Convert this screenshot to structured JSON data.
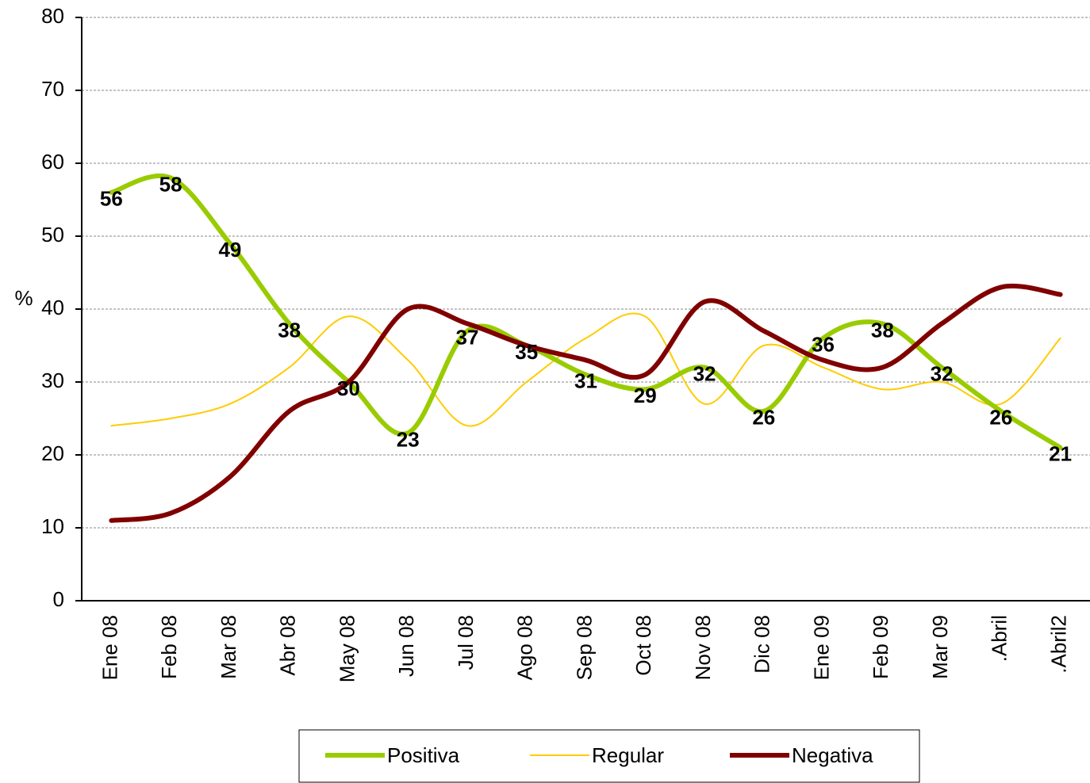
{
  "chart_data": {
    "type": "line",
    "y_label": "%",
    "categories": [
      "Ene 08",
      "Feb 08",
      "Mar 08",
      "Abr 08",
      "May 08",
      "Jun 08",
      "Jul 08",
      "Ago 08",
      "Sep 08",
      "Oct 08",
      "Nov 08",
      "Dic 08",
      "Ene 09",
      "Feb 09",
      "Mar 09",
      ".Abril",
      ".Abril2"
    ],
    "series": [
      {
        "name": "Positiva",
        "color": "#99cc00",
        "width": 6,
        "data_labels": true,
        "values": [
          56,
          58,
          49,
          38,
          30,
          23,
          37,
          35,
          31,
          29,
          32,
          26,
          36,
          38,
          32,
          26,
          21
        ]
      },
      {
        "name": "Regular",
        "color": "#ffcc00",
        "width": 2,
        "data_labels": false,
        "values": [
          24,
          25,
          27,
          32,
          39,
          33,
          24,
          30,
          36,
          39,
          27,
          35,
          32,
          29,
          30,
          27,
          36
        ]
      },
      {
        "name": "Negativa",
        "color": "#800000",
        "width": 6,
        "data_labels": false,
        "values": [
          11,
          12,
          17,
          26,
          30,
          40,
          38,
          35,
          33,
          31,
          41,
          37,
          33,
          32,
          38,
          43,
          42
        ]
      }
    ],
    "ylim": [
      0,
      80
    ],
    "yticks": [
      0,
      10,
      20,
      30,
      40,
      50,
      60,
      70,
      80
    ],
    "grid": true
  }
}
